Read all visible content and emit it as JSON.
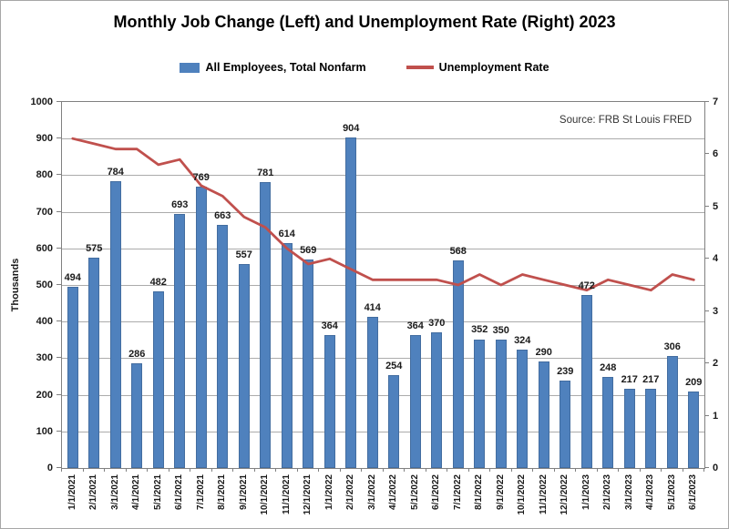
{
  "chart_data": {
    "type": "bar+line",
    "title": "Monthly Job Change (Left) and Unemployment Rate (Right) 2023",
    "source_note": "Source: FRB St Louis FRED",
    "legend_position": "top",
    "grid": true,
    "categories": [
      "1/1/2021",
      "2/1/2021",
      "3/1/2021",
      "4/1/2021",
      "5/1/2021",
      "6/1/2021",
      "7/1/2021",
      "8/1/2021",
      "9/1/2021",
      "10/1/2021",
      "11/1/2021",
      "12/1/2021",
      "1/1/2022",
      "2/1/2022",
      "3/1/2022",
      "4/1/2022",
      "5/1/2022",
      "6/1/2022",
      "7/1/2022",
      "8/1/2022",
      "9/1/2022",
      "10/1/2022",
      "11/1/2022",
      "12/1/2022",
      "1/1/2023",
      "2/1/2023",
      "3/1/2023",
      "4/1/2023",
      "5/1/2023",
      "6/1/2023"
    ],
    "series": [
      {
        "name": "All Employees, Total Nonfarm",
        "type": "bar",
        "axis": "left",
        "color": "#4F81BD",
        "values": [
          494,
          575,
          784,
          286,
          482,
          693,
          769,
          663,
          557,
          781,
          614,
          569,
          364,
          904,
          414,
          254,
          364,
          370,
          568,
          352,
          350,
          324,
          290,
          239,
          472,
          248,
          217,
          217,
          306,
          209
        ]
      },
      {
        "name": "Unemployment Rate",
        "type": "line",
        "axis": "right",
        "color": "#C0504D",
        "values": [
          6.3,
          6.2,
          6.1,
          6.1,
          5.8,
          5.9,
          5.4,
          5.2,
          4.8,
          4.6,
          4.2,
          3.9,
          4.0,
          3.8,
          3.6,
          3.6,
          3.6,
          3.6,
          3.5,
          3.7,
          3.5,
          3.7,
          3.6,
          3.5,
          3.4,
          3.6,
          3.5,
          3.4,
          3.7,
          3.6
        ]
      }
    ],
    "left_axis": {
      "label": "Thousands",
      "min": 0,
      "max": 1000,
      "step": 100
    },
    "right_axis": {
      "min": 0,
      "max": 7,
      "step": 1
    }
  }
}
